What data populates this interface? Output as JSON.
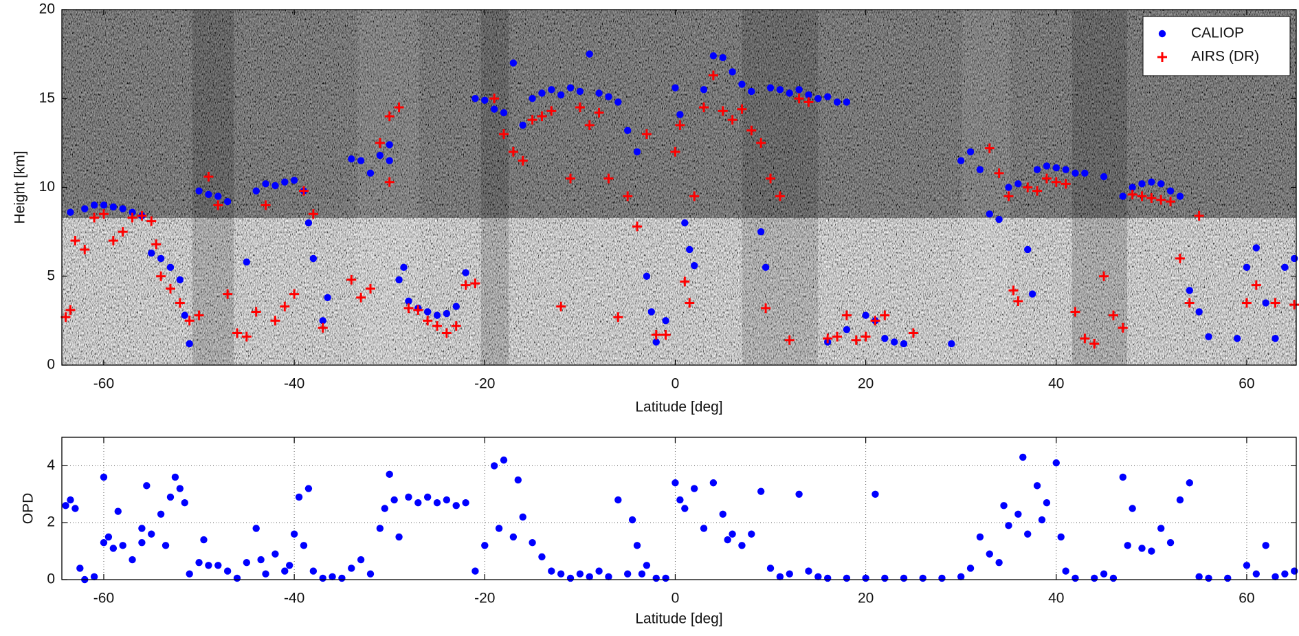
{
  "chart_data": [
    {
      "type": "scatter",
      "xlabel": "Latitude [deg]",
      "ylabel": "Height [km]",
      "xlim": [
        -64.4,
        65.2
      ],
      "xticks": [
        -60,
        -40,
        -20,
        0,
        20,
        40,
        60
      ],
      "ylim": [
        0,
        20
      ],
      "yticks": [
        0,
        5,
        10,
        15,
        20
      ],
      "grid": false,
      "legend": "upper right",
      "series": [
        {
          "name": "CALIOP",
          "color": "#0000ff",
          "marker": "dot",
          "x": [
            -63.5,
            -62,
            -61,
            -60,
            -59,
            -58,
            -57,
            -56,
            -55,
            -54,
            -53,
            -52,
            -51.5,
            -51,
            -50,
            -49,
            -48,
            -47,
            -45,
            -44,
            -43,
            -42,
            -41,
            -40,
            -39,
            -38.5,
            -38,
            -37,
            -36.5,
            -34,
            -33,
            -32,
            -31,
            -30,
            -30,
            -29,
            -28.5,
            -28,
            -27,
            -26,
            -25,
            -24,
            -23,
            -22,
            -21,
            -20,
            -19,
            -18,
            -17,
            -16,
            -15,
            -14,
            -13,
            -12,
            -11,
            -10,
            -9,
            -8,
            -7,
            -6,
            -5,
            -4,
            -3,
            -2.5,
            -2,
            -1,
            0,
            0.5,
            1,
            1.5,
            2,
            3,
            4,
            5,
            6,
            7,
            8,
            9,
            9.5,
            10,
            11,
            12,
            13,
            14,
            15,
            16,
            17,
            18,
            16,
            18,
            20,
            21,
            22,
            23,
            24,
            29,
            30,
            31,
            32,
            33,
            34,
            35,
            36,
            37,
            37.5,
            38,
            39,
            40,
            41,
            42,
            43,
            45,
            47,
            48,
            49,
            50,
            51,
            52,
            53,
            54,
            55,
            56,
            59,
            60,
            61,
            62,
            63,
            64,
            65
          ],
          "values": [
            8.6,
            8.8,
            9,
            9,
            8.9,
            8.8,
            8.6,
            8.4,
            6.3,
            6.0,
            5.5,
            4.8,
            2.8,
            1.2,
            9.8,
            9.6,
            9.5,
            9.2,
            5.8,
            9.8,
            10.2,
            10.1,
            10.3,
            10.4,
            9.8,
            8,
            6,
            2.5,
            3.8,
            11.6,
            11.5,
            10.8,
            11.8,
            11.5,
            12.4,
            4.8,
            5.5,
            3.6,
            3.2,
            3.0,
            2.8,
            2.9,
            3.3,
            5.2,
            15,
            14.9,
            14.4,
            14.2,
            17,
            13.5,
            15,
            15.3,
            15.5,
            15.2,
            15.6,
            15.4,
            17.5,
            15.3,
            15.1,
            14.8,
            13.2,
            12,
            5,
            3,
            1.3,
            2.5,
            15.6,
            14.1,
            8,
            6.5,
            5.6,
            15.5,
            17.4,
            17.3,
            16.5,
            15.8,
            15.4,
            7.5,
            5.5,
            15.6,
            15.5,
            15.3,
            15.5,
            15.2,
            15.0,
            15.1,
            14.8,
            14.8,
            1.3,
            2.0,
            2.8,
            2.5,
            1.5,
            1.3,
            1.2,
            1.2,
            11.5,
            12,
            11,
            8.5,
            8.2,
            10,
            10.2,
            6.5,
            4,
            11,
            11.2,
            11.1,
            11.0,
            10.8,
            10.8,
            10.6,
            9.5,
            10,
            10.2,
            10.3,
            10.2,
            9.8,
            9.5,
            4.2,
            3,
            1.6,
            1.5,
            5.5,
            6.6,
            3.5,
            1.5,
            5.5,
            6
          ]
        },
        {
          "name": "AIRS (DR)",
          "color": "#ff0000",
          "marker": "plus",
          "x": [
            -64,
            -63.5,
            -63,
            -62,
            -61,
            -60,
            -59,
            -58,
            -57,
            -56,
            -55,
            -54.5,
            -54,
            -53,
            -52,
            -51,
            -50,
            -49,
            -48,
            -47,
            -46,
            -45,
            -44,
            -43,
            -42,
            -41,
            -40,
            -39,
            -38,
            -37,
            -34,
            -33,
            -32,
            -31,
            -30,
            -30,
            -29,
            -28,
            -27,
            -26,
            -25,
            -24,
            -23,
            -22,
            -21,
            -19,
            -18,
            -17,
            -16,
            -15,
            -14,
            -13,
            -12,
            -11,
            -10,
            -9,
            -8,
            -7,
            -6,
            -5,
            -4,
            -3,
            -2,
            -1,
            0,
            0.5,
            1,
            1.5,
            2,
            3,
            4,
            5,
            6,
            7,
            8,
            9,
            9.5,
            10,
            11,
            12,
            13,
            14,
            16,
            17,
            18,
            19,
            20,
            21,
            22,
            25,
            33,
            34,
            35,
            35.5,
            36,
            37,
            38,
            39,
            40,
            41,
            42,
            43,
            44,
            45,
            46,
            47,
            48,
            49,
            50,
            51,
            52,
            53,
            54,
            55,
            60,
            61,
            63,
            65
          ],
          "values": [
            2.7,
            3.1,
            7,
            6.5,
            8.3,
            8.5,
            7,
            7.5,
            8.3,
            8.4,
            8.1,
            6.8,
            5,
            4.3,
            3.5,
            2.5,
            2.8,
            10.6,
            9,
            4,
            1.8,
            1.6,
            3,
            9,
            2.5,
            3.3,
            4,
            9.8,
            8.5,
            2.1,
            4.8,
            3.8,
            4.3,
            12.5,
            14,
            10.3,
            14.5,
            3.2,
            3.1,
            2.5,
            2.2,
            1.8,
            2.2,
            4.5,
            4.6,
            15,
            13,
            12,
            11.5,
            13.8,
            14,
            14.3,
            3.3,
            10.5,
            14.5,
            13.5,
            14.2,
            10.5,
            2.7,
            9.5,
            7.8,
            13,
            1.7,
            1.7,
            12,
            13.5,
            4.7,
            3.5,
            9.5,
            14.5,
            16.3,
            14.3,
            13.8,
            14.4,
            13.2,
            12.5,
            3.2,
            10.5,
            9.5,
            1.4,
            15,
            14.8,
            1.5,
            1.6,
            2.8,
            1.4,
            1.6,
            2.5,
            2.8,
            1.8,
            12.2,
            10.8,
            9.5,
            4.2,
            3.6,
            10,
            9.8,
            10.5,
            10.3,
            10.2,
            3,
            1.5,
            1.2,
            5,
            2.8,
            2.1,
            9.6,
            9.5,
            9.4,
            9.3,
            9.2,
            6,
            3.5,
            8.4,
            3.5,
            4.5,
            3.5,
            3.4
          ]
        }
      ]
    },
    {
      "type": "scatter",
      "xlabel": "Latitude [deg]",
      "ylabel": "OPD",
      "xlim": [
        -64.4,
        65.2
      ],
      "xticks": [
        -60,
        -40,
        -20,
        0,
        20,
        40,
        60
      ],
      "ylim": [
        0,
        5
      ],
      "yticks": [
        0,
        2,
        4
      ],
      "grid": true,
      "series": [
        {
          "color": "#0000ff",
          "marker": "dot",
          "x": [
            -64,
            -63.5,
            -63,
            -62.5,
            -62,
            -61,
            -60,
            -60,
            -59.5,
            -59,
            -58.5,
            -58,
            -57,
            -56,
            -56,
            -55.5,
            -55,
            -54,
            -53.5,
            -53,
            -52.5,
            -52,
            -51.5,
            -51,
            -50,
            -49.5,
            -49,
            -48,
            -47,
            -46,
            -45,
            -44,
            -43.5,
            -43,
            -42,
            -41,
            -40.5,
            -40,
            -39.5,
            -39,
            -38.5,
            -38,
            -37,
            -36,
            -35,
            -34,
            -33,
            -32,
            -31,
            -30.5,
            -30,
            -29.5,
            -29,
            -28,
            -27,
            -26,
            -25,
            -24,
            -23,
            -22,
            -21,
            -20,
            -19,
            -18.5,
            -18,
            -17,
            -16.5,
            -16,
            -15,
            -14,
            -13,
            -12,
            -11,
            -10,
            -9,
            -8,
            -7,
            -6,
            -5,
            -4.5,
            -4,
            -3.5,
            -3,
            -2,
            -1,
            0,
            0.5,
            1,
            2,
            3,
            4,
            5,
            5.5,
            6,
            7,
            8,
            9,
            10,
            11,
            12,
            13,
            14,
            15,
            16,
            18,
            20,
            21,
            22,
            24,
            26,
            28,
            30,
            31,
            32,
            33,
            34,
            34.5,
            35,
            36,
            36.5,
            37,
            38,
            38.5,
            39,
            40,
            40.5,
            41,
            42,
            44,
            45,
            46,
            47,
            47.5,
            48,
            49,
            50,
            51,
            52,
            53,
            54,
            55,
            56,
            58,
            60,
            61,
            62,
            63,
            64,
            65
          ],
          "values": [
            2.6,
            2.8,
            2.5,
            0.4,
            0,
            0.1,
            1.3,
            3.6,
            1.5,
            1.1,
            2.4,
            1.2,
            0.7,
            1.8,
            1.3,
            3.3,
            1.6,
            2.3,
            1.2,
            2.9,
            3.6,
            3.2,
            2.7,
            0.2,
            0.6,
            1.4,
            0.5,
            0.5,
            0.3,
            0.05,
            0.6,
            1.8,
            0.7,
            0.2,
            0.9,
            0.3,
            0.5,
            1.6,
            2.9,
            1.2,
            3.2,
            0.3,
            0.05,
            0.1,
            0.05,
            0.4,
            0.7,
            0.2,
            1.8,
            2.5,
            3.7,
            2.8,
            1.5,
            2.9,
            2.7,
            2.9,
            2.7,
            2.8,
            2.6,
            2.7,
            0.3,
            1.2,
            4.0,
            1.8,
            4.2,
            1.5,
            3.5,
            2.2,
            1.3,
            0.8,
            0.3,
            0.2,
            0.05,
            0.2,
            0.1,
            0.3,
            0.1,
            2.8,
            0.2,
            2.1,
            1.2,
            0.2,
            0.5,
            0.05,
            0.05,
            3.4,
            2.8,
            2.5,
            3.2,
            1.8,
            3.4,
            2.3,
            1.4,
            1.6,
            1.2,
            1.6,
            3.1,
            0.4,
            0.1,
            0.2,
            3.0,
            0.3,
            0.1,
            0.05,
            0.05,
            0.05,
            3.0,
            0.05,
            0.05,
            0.05,
            0.05,
            0.1,
            0.4,
            1.5,
            0.9,
            0.6,
            2.6,
            1.9,
            2.3,
            4.3,
            1.6,
            3.3,
            2.1,
            2.7,
            4.1,
            1.5,
            0.3,
            0.05,
            0.05,
            0.2,
            0.05,
            3.6,
            1.2,
            2.5,
            1.1,
            1.0,
            1.8,
            1.3,
            2.8,
            3.4,
            0.1,
            0.05,
            0.05,
            0.5,
            0.2,
            1.2,
            0.1,
            0.2,
            0.3
          ]
        }
      ]
    }
  ]
}
